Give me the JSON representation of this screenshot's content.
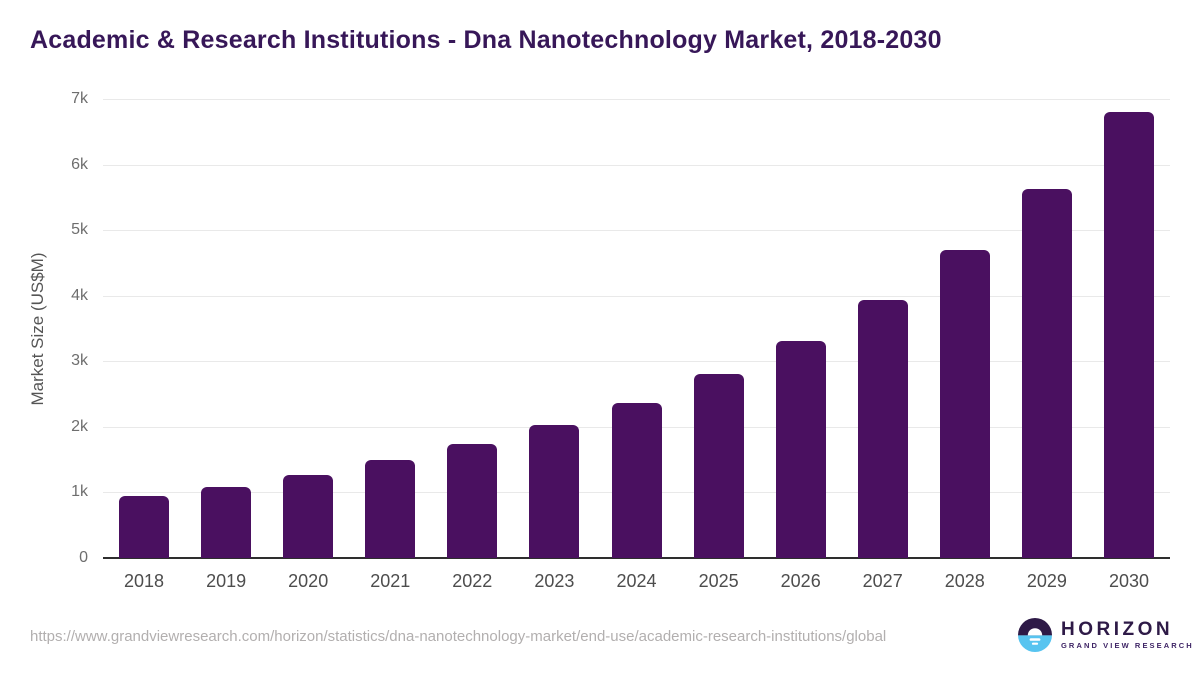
{
  "title": "Academic & Research Institutions - Dna Nanotechnology Market, 2018-2030",
  "chart_data": {
    "type": "bar",
    "title": "Academic & Research Institutions - Dna Nanotechnology Market, 2018-2030",
    "categories": [
      "2018",
      "2019",
      "2020",
      "2021",
      "2022",
      "2023",
      "2024",
      "2025",
      "2026",
      "2027",
      "2028",
      "2029",
      "2030"
    ],
    "values": [
      950,
      1085,
      1270,
      1495,
      1740,
      2030,
      2370,
      2805,
      3310,
      3935,
      4700,
      5635,
      6805
    ],
    "xlabel": "",
    "ylabel": "Market Size (US$M)",
    "ylim": [
      0,
      7000
    ],
    "yticks": [
      {
        "value": 0,
        "label": "0"
      },
      {
        "value": 1000,
        "label": "1k"
      },
      {
        "value": 2000,
        "label": "2k"
      },
      {
        "value": 3000,
        "label": "3k"
      },
      {
        "value": 4000,
        "label": "4k"
      },
      {
        "value": 5000,
        "label": "5k"
      },
      {
        "value": 6000,
        "label": "6k"
      },
      {
        "value": 7000,
        "label": "7k"
      }
    ],
    "grid": true,
    "legend": "none",
    "bar_color": "#4a1060"
  },
  "footer": {
    "source_url": "https://www.grandviewresearch.com/horizon/statistics/dna-nanotechnology-market/end-use/academic-research-institutions/global",
    "logo": {
      "name": "HORIZON",
      "subtitle": "GRAND VIEW RESEARCH",
      "icon": "sun-horizon-icon",
      "purple": "#2e1a47",
      "blue": "#57c4f0"
    }
  },
  "colors": {
    "title": "#371758",
    "bar": "#4a1060",
    "gridline": "#e9e9e9",
    "axis_line": "#2e2e2e"
  }
}
